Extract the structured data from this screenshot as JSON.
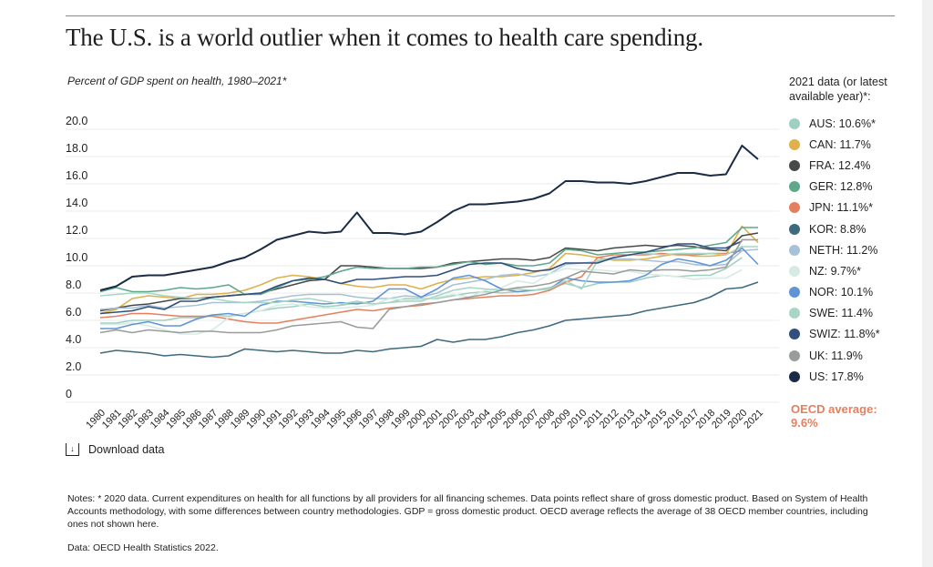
{
  "header": {
    "title": "The U.S. is a world outlier when it comes to health care spending.",
    "subtitle": "Percent of GDP spent on health, 1980–2021*"
  },
  "legend": {
    "title": "2021 data (or latest available year)*:",
    "items": [
      {
        "label": "AUS: 10.6%*",
        "color": "#9fcfc0"
      },
      {
        "label": "CAN: 11.7%",
        "color": "#e0b04a"
      },
      {
        "label": "FRA: 12.4%",
        "color": "#454a48"
      },
      {
        "label": "GER: 12.8%",
        "color": "#5fa88a"
      },
      {
        "label": "JPN: 11.1%*",
        "color": "#e4805f"
      },
      {
        "label": "KOR: 8.8%",
        "color": "#3e6a80"
      },
      {
        "label": "NETH: 11.2%",
        "color": "#a7c2d8"
      },
      {
        "label": "NZ: 9.7%*",
        "color": "#d6ebe3"
      },
      {
        "label": "NOR: 10.1%",
        "color": "#5f95d6"
      },
      {
        "label": "SWE: 11.4%",
        "color": "#a8d6c4"
      },
      {
        "label": "SWIZ: 11.8%*",
        "color": "#2f4f7c"
      },
      {
        "label": "UK: 11.9%",
        "color": "#999c9a"
      },
      {
        "label": "US: 17.8%",
        "color": "#1b2b45"
      }
    ]
  },
  "oecd_average": {
    "label": "OECD average:",
    "value": "9.6%"
  },
  "download_label": "Download data",
  "notes": "Notes: * 2020 data. Current expenditures on health for all functions by all providers for all financing schemes. Data points reflect share of gross domestic product. Based on System of Health Accounts methodology, with some differences between country methodologies. GDP = gross domestic product. OECD average reflects the average of 38 OECD member countries, including ones not shown here.",
  "source": "Data: OECD Health Statistics 2022.",
  "chart_data": {
    "type": "line",
    "title": "Percent of GDP spent on health, 1980–2021*",
    "xlabel": "",
    "ylabel": "",
    "ylim": [
      0,
      20
    ],
    "yticks": [
      "0",
      "2.0",
      "4.0",
      "6.0",
      "8.0",
      "10.0",
      "12.0",
      "14.0",
      "16.0",
      "18.0",
      "20.0"
    ],
    "grid": true,
    "legend": "right",
    "x": [
      1980,
      1981,
      1982,
      1983,
      1984,
      1985,
      1986,
      1987,
      1988,
      1989,
      1990,
      1991,
      1992,
      1993,
      1994,
      1995,
      1996,
      1997,
      1998,
      1999,
      2000,
      2001,
      2002,
      2003,
      2004,
      2005,
      2006,
      2007,
      2008,
      2009,
      2010,
      2011,
      2012,
      2013,
      2014,
      2015,
      2016,
      2017,
      2018,
      2019,
      2020,
      2021
    ],
    "series": [
      {
        "name": "AUS",
        "values": [
          5.8,
          5.8,
          6.0,
          6.0,
          6.0,
          6.2,
          6.2,
          6.4,
          6.3,
          6.5,
          6.7,
          6.9,
          7.0,
          7.2,
          7.0,
          7.1,
          7.3,
          7.2,
          7.3,
          7.6,
          7.6,
          7.6,
          7.8,
          8.0,
          8.1,
          8.0,
          8.1,
          8.2,
          8.4,
          8.7,
          8.4,
          8.7,
          8.8,
          8.8,
          9.1,
          9.3,
          9.2,
          9.3,
          9.3,
          9.8,
          10.6,
          null
        ]
      },
      {
        "name": "CAN",
        "values": [
          6.5,
          6.8,
          7.6,
          7.8,
          7.7,
          7.6,
          7.9,
          7.9,
          8.0,
          8.2,
          8.6,
          9.1,
          9.3,
          9.2,
          9.0,
          8.7,
          8.5,
          8.4,
          8.6,
          8.6,
          8.3,
          8.7,
          9.0,
          9.1,
          9.2,
          9.2,
          9.3,
          9.5,
          9.8,
          10.9,
          10.8,
          10.6,
          10.4,
          10.4,
          10.5,
          10.7,
          10.9,
          10.7,
          10.7,
          10.8,
          12.9,
          11.7
        ]
      },
      {
        "name": "FRA",
        "values": [
          6.7,
          6.9,
          7.1,
          7.2,
          7.4,
          7.6,
          7.6,
          7.7,
          7.8,
          7.9,
          8.0,
          8.3,
          8.6,
          8.9,
          9.0,
          10.0,
          10.0,
          9.9,
          9.8,
          9.8,
          9.8,
          9.9,
          10.2,
          10.3,
          10.4,
          10.5,
          10.5,
          10.4,
          10.6,
          11.3,
          11.2,
          11.1,
          11.3,
          11.4,
          11.5,
          11.4,
          11.5,
          11.4,
          11.2,
          11.1,
          12.2,
          12.4
        ]
      },
      {
        "name": "GER",
        "values": [
          8.1,
          8.4,
          8.1,
          8.1,
          8.2,
          8.4,
          8.3,
          8.4,
          8.6,
          7.9,
          7.9,
          8.4,
          8.9,
          9.0,
          9.2,
          9.6,
          9.9,
          9.8,
          9.8,
          9.8,
          9.9,
          9.9,
          10.1,
          10.3,
          10.1,
          10.2,
          10.0,
          10.0,
          10.2,
          11.2,
          11.1,
          10.8,
          10.9,
          11.0,
          11.0,
          11.1,
          11.2,
          11.3,
          11.5,
          11.7,
          12.8,
          12.8
        ]
      },
      {
        "name": "JPN",
        "values": [
          6.2,
          6.3,
          6.5,
          6.5,
          6.4,
          6.3,
          6.3,
          6.3,
          6.1,
          5.9,
          5.8,
          5.8,
          6.0,
          6.2,
          6.4,
          6.6,
          6.8,
          6.7,
          6.9,
          7.0,
          7.1,
          7.3,
          7.5,
          7.6,
          7.7,
          7.8,
          7.8,
          7.9,
          8.2,
          8.8,
          9.2,
          10.6,
          10.8,
          10.8,
          10.8,
          10.9,
          10.8,
          10.8,
          10.9,
          10.9,
          11.1,
          null
        ]
      },
      {
        "name": "KOR",
        "values": [
          3.6,
          3.8,
          3.7,
          3.6,
          3.4,
          3.5,
          3.4,
          3.3,
          3.4,
          3.9,
          3.8,
          3.7,
          3.8,
          3.7,
          3.6,
          3.6,
          3.8,
          3.7,
          3.9,
          4.0,
          4.1,
          4.6,
          4.4,
          4.6,
          4.6,
          4.8,
          5.1,
          5.3,
          5.6,
          6.0,
          6.1,
          6.2,
          6.3,
          6.4,
          6.7,
          6.9,
          7.1,
          7.3,
          7.7,
          8.3,
          8.4,
          8.8
        ]
      },
      {
        "name": "NETH",
        "values": [
          6.8,
          6.9,
          6.9,
          7.1,
          6.9,
          7.0,
          7.1,
          7.3,
          7.3,
          7.3,
          7.4,
          7.6,
          7.8,
          7.9,
          7.9,
          7.9,
          7.7,
          7.6,
          7.6,
          7.8,
          7.7,
          8.0,
          8.6,
          8.8,
          9.0,
          9.3,
          9.4,
          9.2,
          9.4,
          10.1,
          10.2,
          10.3,
          10.5,
          10.5,
          10.4,
          10.3,
          10.3,
          10.1,
          10.0,
          10.1,
          11.1,
          11.2
        ]
      },
      {
        "name": "NZ",
        "values": [
          5.7,
          5.7,
          5.8,
          5.6,
          5.3,
          5.0,
          5.0,
          5.3,
          6.2,
          6.5,
          6.7,
          7.1,
          7.2,
          7.0,
          6.9,
          6.9,
          7.0,
          7.1,
          7.6,
          7.5,
          7.5,
          7.7,
          7.9,
          7.7,
          8.2,
          8.4,
          8.9,
          8.7,
          9.4,
          9.8,
          9.7,
          9.7,
          9.6,
          9.6,
          9.4,
          9.3,
          9.2,
          9.0,
          9.1,
          9.1,
          9.7,
          null
        ]
      },
      {
        "name": "NOR",
        "values": [
          5.4,
          5.4,
          5.7,
          5.9,
          5.6,
          5.6,
          6.1,
          6.4,
          6.5,
          6.3,
          7.1,
          7.4,
          7.4,
          7.3,
          7.2,
          7.3,
          7.2,
          7.4,
          8.3,
          8.3,
          7.7,
          8.3,
          9.1,
          9.3,
          8.9,
          8.3,
          8.1,
          8.2,
          8.3,
          9.1,
          8.9,
          8.8,
          8.8,
          8.9,
          9.3,
          10.1,
          10.5,
          10.3,
          10.0,
          10.4,
          11.3,
          10.1
        ]
      },
      {
        "name": "SWE",
        "values": [
          7.8,
          7.9,
          8.0,
          8.0,
          7.8,
          7.7,
          7.6,
          7.6,
          7.4,
          7.3,
          7.3,
          7.3,
          7.5,
          7.6,
          7.4,
          7.2,
          7.4,
          7.2,
          7.3,
          7.4,
          7.4,
          7.8,
          8.2,
          8.4,
          8.3,
          8.2,
          8.3,
          8.2,
          8.3,
          8.9,
          8.3,
          10.4,
          10.6,
          10.8,
          10.9,
          10.8,
          10.9,
          10.9,
          10.9,
          10.8,
          11.4,
          11.4
        ]
      },
      {
        "name": "SWIZ",
        "values": [
          6.5,
          6.6,
          6.7,
          7.0,
          6.8,
          7.4,
          7.4,
          7.7,
          7.8,
          7.9,
          8.0,
          8.5,
          8.9,
          9.1,
          9.0,
          8.7,
          9.0,
          9.0,
          9.1,
          9.2,
          9.2,
          9.3,
          9.7,
          10.1,
          10.2,
          10.2,
          9.8,
          9.6,
          9.7,
          10.2,
          10.2,
          10.2,
          10.6,
          10.8,
          11.0,
          11.3,
          11.6,
          11.6,
          11.3,
          11.3,
          11.8,
          null
        ]
      },
      {
        "name": "UK",
        "values": [
          5.1,
          5.3,
          5.1,
          5.3,
          5.2,
          5.1,
          5.2,
          5.2,
          5.1,
          5.1,
          5.1,
          5.3,
          5.6,
          5.7,
          5.8,
          5.9,
          5.5,
          5.4,
          6.8,
          7.0,
          7.2,
          7.3,
          7.5,
          7.7,
          7.9,
          8.2,
          8.4,
          8.5,
          8.7,
          9.1,
          9.6,
          9.5,
          9.4,
          9.7,
          9.6,
          9.7,
          9.7,
          9.6,
          9.7,
          9.9,
          11.9,
          11.9
        ]
      },
      {
        "name": "US",
        "values": [
          8.2,
          8.5,
          9.2,
          9.3,
          9.3,
          9.5,
          9.7,
          9.9,
          10.3,
          10.6,
          11.2,
          11.9,
          12.2,
          12.5,
          12.4,
          12.5,
          13.9,
          12.4,
          12.4,
          12.3,
          12.5,
          13.2,
          14.0,
          14.5,
          14.5,
          14.6,
          14.7,
          14.9,
          15.3,
          16.2,
          16.2,
          16.1,
          16.1,
          16.0,
          16.2,
          16.5,
          16.8,
          16.8,
          16.6,
          16.7,
          18.8,
          17.8
        ]
      }
    ]
  }
}
